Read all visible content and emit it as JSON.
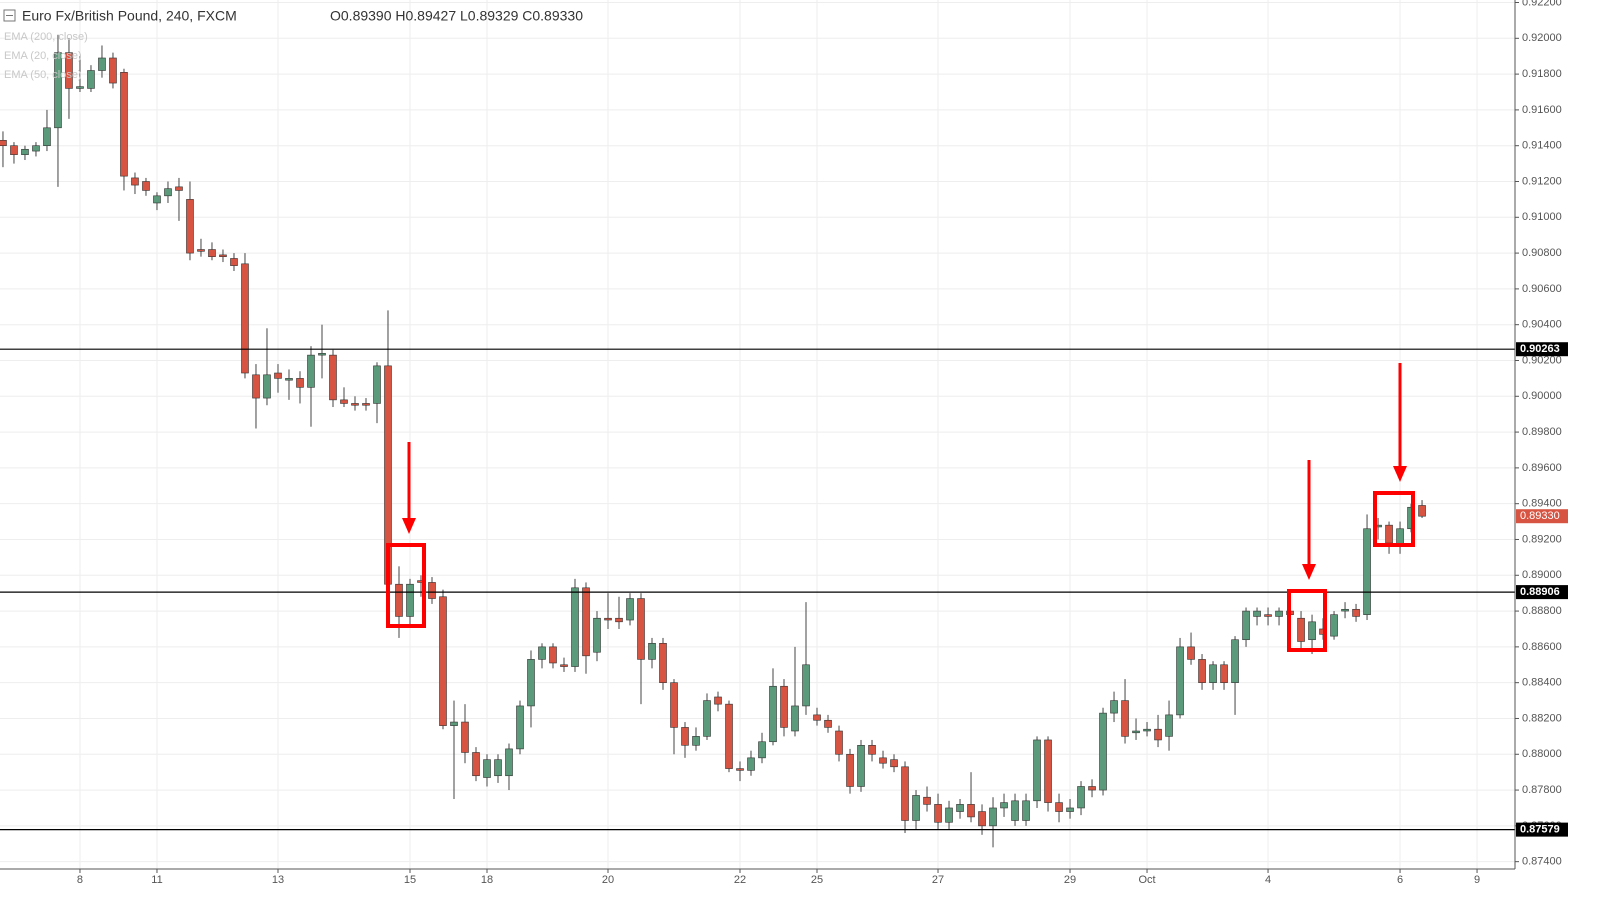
{
  "chart_data": {
    "type": "candlestick",
    "title": "Euro Fx/British Pound, 240, FXCM",
    "ohlc_header": "O0.89390 H0.89427 L0.89329 C0.89330",
    "indicators": [
      "EMA (200, close)",
      "EMA (20, close)",
      "EMA (50, close)"
    ],
    "up_color": "#5b9a7a",
    "down_color": "#d75442",
    "ylim": [
      0.87359,
      0.92214
    ],
    "yticks": [
      {
        "value": 0.922,
        "label": "0.92200"
      },
      {
        "value": 0.92,
        "label": "0.92000"
      },
      {
        "value": 0.918,
        "label": "0.91800"
      },
      {
        "value": 0.916,
        "label": "0.91600"
      },
      {
        "value": 0.914,
        "label": "0.91400"
      },
      {
        "value": 0.912,
        "label": "0.91200"
      },
      {
        "value": 0.91,
        "label": "0.91000"
      },
      {
        "value": 0.908,
        "label": "0.90800"
      },
      {
        "value": 0.906,
        "label": "0.90600"
      },
      {
        "value": 0.904,
        "label": "0.90400"
      },
      {
        "value": 0.902,
        "label": "0.90200"
      },
      {
        "value": 0.9,
        "label": "0.90000"
      },
      {
        "value": 0.898,
        "label": "0.89800"
      },
      {
        "value": 0.896,
        "label": "0.89600"
      },
      {
        "value": 0.894,
        "label": "0.89400"
      },
      {
        "value": 0.892,
        "label": "0.89200"
      },
      {
        "value": 0.89,
        "label": "0.89000"
      },
      {
        "value": 0.888,
        "label": "0.88800"
      },
      {
        "value": 0.886,
        "label": "0.88600"
      },
      {
        "value": 0.884,
        "label": "0.88400"
      },
      {
        "value": 0.882,
        "label": "0.88200"
      },
      {
        "value": 0.88,
        "label": "0.88000"
      },
      {
        "value": 0.878,
        "label": "0.87800"
      },
      {
        "value": 0.876,
        "label": "0.87600"
      },
      {
        "value": 0.874,
        "label": "0.87400"
      }
    ],
    "xlim": [
      -0.27,
      137.45
    ],
    "xticks": [
      {
        "value": 7,
        "label": "8"
      },
      {
        "value": 14,
        "label": "11"
      },
      {
        "value": 25,
        "label": "13"
      },
      {
        "value": 37,
        "label": "15"
      },
      {
        "value": 44,
        "label": "18"
      },
      {
        "value": 55,
        "label": "20"
      },
      {
        "value": 67,
        "label": "22"
      },
      {
        "value": 74,
        "label": "25"
      },
      {
        "value": 85,
        "label": "27"
      },
      {
        "value": 97,
        "label": "29"
      },
      {
        "value": 104,
        "label": "Oct"
      },
      {
        "value": 115,
        "label": "4"
      },
      {
        "value": 127,
        "label": "6"
      },
      {
        "value": 134,
        "label": "9"
      }
    ],
    "grid": true,
    "levels": [
      {
        "value": 0.90263,
        "label": "0.90263"
      },
      {
        "value": 0.88906,
        "label": "0.88906"
      },
      {
        "value": 0.87579,
        "label": "0.87579"
      }
    ],
    "last_price": {
      "value": 0.8933,
      "label": "0.89330"
    },
    "candles": [
      {
        "o": 0.9143,
        "h": 0.9148,
        "l": 0.9128,
        "c": 0.914
      },
      {
        "o": 0.914,
        "h": 0.9142,
        "l": 0.913,
        "c": 0.9135
      },
      {
        "o": 0.9135,
        "h": 0.914,
        "l": 0.9132,
        "c": 0.9138
      },
      {
        "o": 0.9137,
        "h": 0.9142,
        "l": 0.9134,
        "c": 0.914
      },
      {
        "o": 0.914,
        "h": 0.916,
        "l": 0.9137,
        "c": 0.915
      },
      {
        "o": 0.915,
        "h": 0.9202,
        "l": 0.9117,
        "c": 0.9192
      },
      {
        "o": 0.9192,
        "h": 0.92,
        "l": 0.9155,
        "c": 0.9172
      },
      {
        "o": 0.9172,
        "h": 0.919,
        "l": 0.917,
        "c": 0.9173
      },
      {
        "o": 0.9172,
        "h": 0.9185,
        "l": 0.917,
        "c": 0.9182
      },
      {
        "o": 0.9182,
        "h": 0.9196,
        "l": 0.9178,
        "c": 0.9189
      },
      {
        "o": 0.9189,
        "h": 0.9192,
        "l": 0.9172,
        "c": 0.9175
      },
      {
        "o": 0.9181,
        "h": 0.9183,
        "l": 0.9115,
        "c": 0.9123
      },
      {
        "o": 0.9122,
        "h": 0.9125,
        "l": 0.9113,
        "c": 0.9118
      },
      {
        "o": 0.912,
        "h": 0.9122,
        "l": 0.9112,
        "c": 0.9115
      },
      {
        "o": 0.9108,
        "h": 0.9114,
        "l": 0.9104,
        "c": 0.9112
      },
      {
        "o": 0.9112,
        "h": 0.912,
        "l": 0.9108,
        "c": 0.9116
      },
      {
        "o": 0.9117,
        "h": 0.9122,
        "l": 0.9098,
        "c": 0.9115
      },
      {
        "o": 0.911,
        "h": 0.912,
        "l": 0.9076,
        "c": 0.908
      },
      {
        "o": 0.9082,
        "h": 0.9088,
        "l": 0.9078,
        "c": 0.9081
      },
      {
        "o": 0.9082,
        "h": 0.9086,
        "l": 0.9076,
        "c": 0.9078
      },
      {
        "o": 0.9079,
        "h": 0.9082,
        "l": 0.9075,
        "c": 0.9078
      },
      {
        "o": 0.9077,
        "h": 0.908,
        "l": 0.907,
        "c": 0.9073
      },
      {
        "o": 0.9074,
        "h": 0.908,
        "l": 0.901,
        "c": 0.9013
      },
      {
        "o": 0.9012,
        "h": 0.9018,
        "l": 0.8982,
        "c": 0.8999
      },
      {
        "o": 0.8999,
        "h": 0.9038,
        "l": 0.8995,
        "c": 0.9012
      },
      {
        "o": 0.9013,
        "h": 0.9018,
        "l": 0.9002,
        "c": 0.901
      },
      {
        "o": 0.9009,
        "h": 0.9015,
        "l": 0.8998,
        "c": 0.901
      },
      {
        "o": 0.901,
        "h": 0.9014,
        "l": 0.8996,
        "c": 0.9005
      },
      {
        "o": 0.9005,
        "h": 0.9028,
        "l": 0.8983,
        "c": 0.9023
      },
      {
        "o": 0.9023,
        "h": 0.904,
        "l": 0.901,
        "c": 0.9024
      },
      {
        "o": 0.9023,
        "h": 0.9026,
        "l": 0.8994,
        "c": 0.8998
      },
      {
        "o": 0.8998,
        "h": 0.9005,
        "l": 0.8994,
        "c": 0.8996
      },
      {
        "o": 0.8996,
        "h": 0.9,
        "l": 0.8992,
        "c": 0.8995
      },
      {
        "o": 0.8996,
        "h": 0.8999,
        "l": 0.8992,
        "c": 0.8995
      },
      {
        "o": 0.8996,
        "h": 0.9019,
        "l": 0.8985,
        "c": 0.9017
      },
      {
        "o": 0.9017,
        "h": 0.9048,
        "l": 0.889,
        "c": 0.8895
      },
      {
        "o": 0.8895,
        "h": 0.8905,
        "l": 0.8865,
        "c": 0.8877
      },
      {
        "o": 0.8877,
        "h": 0.8898,
        "l": 0.8872,
        "c": 0.8895
      },
      {
        "o": 0.8897,
        "h": 0.89,
        "l": 0.8888,
        "c": 0.8896
      },
      {
        "o": 0.8896,
        "h": 0.8899,
        "l": 0.8884,
        "c": 0.8887
      },
      {
        "o": 0.8888,
        "h": 0.8892,
        "l": 0.8814,
        "c": 0.8816
      },
      {
        "o": 0.8816,
        "h": 0.883,
        "l": 0.8775,
        "c": 0.8818
      },
      {
        "o": 0.8818,
        "h": 0.8828,
        "l": 0.8795,
        "c": 0.8801
      },
      {
        "o": 0.8801,
        "h": 0.8804,
        "l": 0.8785,
        "c": 0.8788
      },
      {
        "o": 0.8787,
        "h": 0.88,
        "l": 0.8782,
        "c": 0.8797
      },
      {
        "o": 0.8788,
        "h": 0.88,
        "l": 0.8784,
        "c": 0.8797
      },
      {
        "o": 0.8788,
        "h": 0.8806,
        "l": 0.878,
        "c": 0.8803
      },
      {
        "o": 0.8803,
        "h": 0.883,
        "l": 0.88,
        "c": 0.8827
      },
      {
        "o": 0.8827,
        "h": 0.8858,
        "l": 0.8815,
        "c": 0.8853
      },
      {
        "o": 0.8853,
        "h": 0.8862,
        "l": 0.8848,
        "c": 0.886
      },
      {
        "o": 0.886,
        "h": 0.8862,
        "l": 0.8848,
        "c": 0.8851
      },
      {
        "o": 0.885,
        "h": 0.8854,
        "l": 0.8846,
        "c": 0.8849
      },
      {
        "o": 0.8849,
        "h": 0.8898,
        "l": 0.8846,
        "c": 0.8893
      },
      {
        "o": 0.8893,
        "h": 0.8896,
        "l": 0.8845,
        "c": 0.8855
      },
      {
        "o": 0.8857,
        "h": 0.888,
        "l": 0.8852,
        "c": 0.8876
      },
      {
        "o": 0.8876,
        "h": 0.889,
        "l": 0.887,
        "c": 0.8875
      },
      {
        "o": 0.8876,
        "h": 0.8888,
        "l": 0.887,
        "c": 0.8874
      },
      {
        "o": 0.8875,
        "h": 0.889,
        "l": 0.8872,
        "c": 0.8887
      },
      {
        "o": 0.8887,
        "h": 0.889,
        "l": 0.8828,
        "c": 0.8853
      },
      {
        "o": 0.8853,
        "h": 0.8865,
        "l": 0.8848,
        "c": 0.8862
      },
      {
        "o": 0.8862,
        "h": 0.8865,
        "l": 0.8836,
        "c": 0.884
      },
      {
        "o": 0.884,
        "h": 0.8842,
        "l": 0.88,
        "c": 0.8815
      },
      {
        "o": 0.8815,
        "h": 0.8818,
        "l": 0.8798,
        "c": 0.8805
      },
      {
        "o": 0.8805,
        "h": 0.8815,
        "l": 0.8802,
        "c": 0.881
      },
      {
        "o": 0.881,
        "h": 0.8834,
        "l": 0.8808,
        "c": 0.883
      },
      {
        "o": 0.8832,
        "h": 0.8835,
        "l": 0.8824,
        "c": 0.8828
      },
      {
        "o": 0.8828,
        "h": 0.883,
        "l": 0.879,
        "c": 0.8792
      },
      {
        "o": 0.8792,
        "h": 0.8796,
        "l": 0.8785,
        "c": 0.8791
      },
      {
        "o": 0.8791,
        "h": 0.8802,
        "l": 0.8788,
        "c": 0.8798
      },
      {
        "o": 0.8798,
        "h": 0.8812,
        "l": 0.8795,
        "c": 0.8807
      },
      {
        "o": 0.8807,
        "h": 0.8848,
        "l": 0.8805,
        "c": 0.8838
      },
      {
        "o": 0.8838,
        "h": 0.8842,
        "l": 0.881,
        "c": 0.8815
      },
      {
        "o": 0.8813,
        "h": 0.886,
        "l": 0.881,
        "c": 0.8827
      },
      {
        "o": 0.8827,
        "h": 0.8885,
        "l": 0.8822,
        "c": 0.885
      },
      {
        "o": 0.8822,
        "h": 0.8826,
        "l": 0.8816,
        "c": 0.8819
      },
      {
        "o": 0.8819,
        "h": 0.8822,
        "l": 0.8812,
        "c": 0.8815
      },
      {
        "o": 0.8813,
        "h": 0.8816,
        "l": 0.8796,
        "c": 0.88
      },
      {
        "o": 0.88,
        "h": 0.8803,
        "l": 0.8778,
        "c": 0.8782
      },
      {
        "o": 0.8782,
        "h": 0.8808,
        "l": 0.8779,
        "c": 0.8805
      },
      {
        "o": 0.8805,
        "h": 0.8808,
        "l": 0.8796,
        "c": 0.88
      },
      {
        "o": 0.8798,
        "h": 0.8802,
        "l": 0.8792,
        "c": 0.8795
      },
      {
        "o": 0.8797,
        "h": 0.88,
        "l": 0.879,
        "c": 0.8793
      },
      {
        "o": 0.8793,
        "h": 0.8796,
        "l": 0.8756,
        "c": 0.8763
      },
      {
        "o": 0.8763,
        "h": 0.878,
        "l": 0.8758,
        "c": 0.8777
      },
      {
        "o": 0.8776,
        "h": 0.8782,
        "l": 0.8768,
        "c": 0.8772
      },
      {
        "o": 0.8772,
        "h": 0.8778,
        "l": 0.8758,
        "c": 0.8762
      },
      {
        "o": 0.8762,
        "h": 0.8774,
        "l": 0.8758,
        "c": 0.877
      },
      {
        "o": 0.8768,
        "h": 0.8775,
        "l": 0.8764,
        "c": 0.8772
      },
      {
        "o": 0.8772,
        "h": 0.879,
        "l": 0.8762,
        "c": 0.8765
      },
      {
        "o": 0.8768,
        "h": 0.8772,
        "l": 0.8755,
        "c": 0.876
      },
      {
        "o": 0.876,
        "h": 0.8776,
        "l": 0.8748,
        "c": 0.877
      },
      {
        "o": 0.877,
        "h": 0.8778,
        "l": 0.8765,
        "c": 0.8773
      },
      {
        "o": 0.8763,
        "h": 0.8778,
        "l": 0.876,
        "c": 0.8774
      },
      {
        "o": 0.8763,
        "h": 0.8778,
        "l": 0.876,
        "c": 0.8774
      },
      {
        "o": 0.8774,
        "h": 0.881,
        "l": 0.877,
        "c": 0.8808
      },
      {
        "o": 0.8808,
        "h": 0.881,
        "l": 0.8768,
        "c": 0.8773
      },
      {
        "o": 0.8773,
        "h": 0.8778,
        "l": 0.8762,
        "c": 0.8768
      },
      {
        "o": 0.8768,
        "h": 0.8775,
        "l": 0.8764,
        "c": 0.877
      },
      {
        "o": 0.877,
        "h": 0.8785,
        "l": 0.8766,
        "c": 0.8782
      },
      {
        "o": 0.8782,
        "h": 0.8786,
        "l": 0.8776,
        "c": 0.878
      },
      {
        "o": 0.878,
        "h": 0.8826,
        "l": 0.8777,
        "c": 0.8823
      },
      {
        "o": 0.8823,
        "h": 0.8835,
        "l": 0.8818,
        "c": 0.883
      },
      {
        "o": 0.883,
        "h": 0.8842,
        "l": 0.8806,
        "c": 0.881
      },
      {
        "o": 0.8812,
        "h": 0.882,
        "l": 0.8808,
        "c": 0.8813
      },
      {
        "o": 0.8813,
        "h": 0.8818,
        "l": 0.881,
        "c": 0.8814
      },
      {
        "o": 0.8814,
        "h": 0.8822,
        "l": 0.8804,
        "c": 0.8808
      },
      {
        "o": 0.881,
        "h": 0.883,
        "l": 0.8802,
        "c": 0.8822
      },
      {
        "o": 0.8822,
        "h": 0.8865,
        "l": 0.882,
        "c": 0.886
      },
      {
        "o": 0.886,
        "h": 0.8868,
        "l": 0.885,
        "c": 0.8853
      },
      {
        "o": 0.8853,
        "h": 0.8856,
        "l": 0.8836,
        "c": 0.884
      },
      {
        "o": 0.884,
        "h": 0.8852,
        "l": 0.8836,
        "c": 0.885
      },
      {
        "o": 0.885,
        "h": 0.8852,
        "l": 0.8836,
        "c": 0.884
      },
      {
        "o": 0.884,
        "h": 0.8866,
        "l": 0.8822,
        "c": 0.8864
      },
      {
        "o": 0.8864,
        "h": 0.8882,
        "l": 0.886,
        "c": 0.888
      },
      {
        "o": 0.8877,
        "h": 0.8882,
        "l": 0.8872,
        "c": 0.888
      },
      {
        "o": 0.8878,
        "h": 0.8882,
        "l": 0.8872,
        "c": 0.8877
      },
      {
        "o": 0.8877,
        "h": 0.8882,
        "l": 0.8872,
        "c": 0.888
      },
      {
        "o": 0.888,
        "h": 0.8882,
        "l": 0.8872,
        "c": 0.8878
      },
      {
        "o": 0.8876,
        "h": 0.888,
        "l": 0.8858,
        "c": 0.8863
      },
      {
        "o": 0.8864,
        "h": 0.8878,
        "l": 0.8856,
        "c": 0.8874
      },
      {
        "o": 0.887,
        "h": 0.8876,
        "l": 0.8864,
        "c": 0.8867
      },
      {
        "o": 0.8866,
        "h": 0.888,
        "l": 0.8864,
        "c": 0.8878
      },
      {
        "o": 0.888,
        "h": 0.8885,
        "l": 0.8876,
        "c": 0.8881
      },
      {
        "o": 0.8881,
        "h": 0.8884,
        "l": 0.8874,
        "c": 0.8877
      },
      {
        "o": 0.8878,
        "h": 0.8934,
        "l": 0.8875,
        "c": 0.8926
      },
      {
        "o": 0.8927,
        "h": 0.8932,
        "l": 0.892,
        "c": 0.8928
      },
      {
        "o": 0.8928,
        "h": 0.893,
        "l": 0.8912,
        "c": 0.8918
      },
      {
        "o": 0.8916,
        "h": 0.893,
        "l": 0.8912,
        "c": 0.8926
      },
      {
        "o": 0.8926,
        "h": 0.894,
        "l": 0.8924,
        "c": 0.8938
      },
      {
        "o": 0.8939,
        "h": 0.8942,
        "l": 0.8932,
        "c": 0.8933
      }
    ]
  }
}
